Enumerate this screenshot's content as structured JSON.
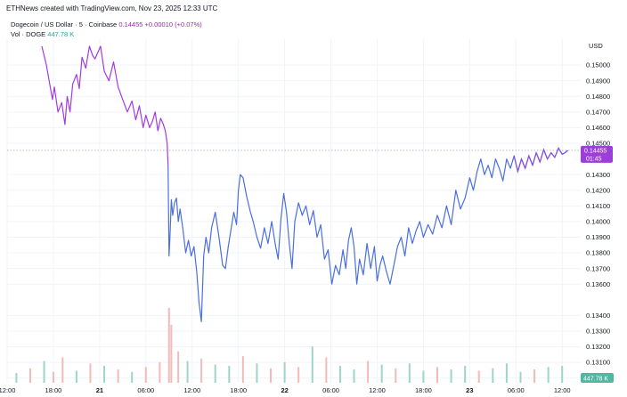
{
  "header": {
    "attribution": "ETHNews created with TradingView.com, Nov 23, 2025 12:33 UTC"
  },
  "legend": {
    "symbol": "Dogecoin / US Dollar · 5 · Coinbase",
    "last_price": "0.14455",
    "change": "+0.00010 (+0.07%)",
    "volume_label": "Vol · DOGE",
    "volume_value": "447.78 K"
  },
  "axis": {
    "currency": "USD"
  },
  "badges": {
    "price": "0.14455",
    "countdown": "01:45",
    "volume": "447.78 K"
  },
  "colors": {
    "price_line_purple": "#a33be0",
    "price_line_blue": "#4a6fe0",
    "vol_up": "#9fd5c9",
    "vol_down": "#f4b9b9"
  },
  "chart_data": {
    "type": "line",
    "symbol": "DOGEUSD",
    "exchange": "Coinbase",
    "interval": "5",
    "y_ticks": [
      "0.15000",
      "0.14900",
      "0.14800",
      "0.14700",
      "0.14600",
      "0.14500",
      "0.14300",
      "0.14200",
      "0.14100",
      "0.14000",
      "0.13900",
      "0.13800",
      "0.13700",
      "0.13600",
      "0.13400",
      "0.13300",
      "0.13200",
      "0.13100",
      "0.13000"
    ],
    "x_ticks": [
      "12:00",
      "18:00",
      "21",
      "06:00",
      "12:00",
      "18:00",
      "22",
      "06:00",
      "12:00",
      "18:00",
      "23",
      "06:00",
      "12:00"
    ],
    "ylim": [
      0.1297,
      0.1512
    ],
    "xlim": [
      0,
      12.4
    ],
    "last_price_line": 0.14455,
    "series": [
      {
        "x": [
          0.75,
          0.85,
          0.92,
          0.98,
          1.02,
          1.1,
          1.18,
          1.25,
          1.3,
          1.36,
          1.42,
          1.5,
          1.56,
          1.62,
          1.7,
          1.78,
          1.85,
          1.9,
          1.96,
          2.02,
          2.1,
          2.2,
          2.3,
          2.4,
          2.5,
          2.6,
          2.7,
          2.78,
          2.86,
          2.94,
          3.0,
          3.08,
          3.14,
          3.2,
          3.26,
          3.32,
          3.38,
          3.42,
          3.46,
          3.48
        ],
        "y": [
          0.1512,
          0.15,
          0.1488,
          0.1478,
          0.1486,
          0.147,
          0.1476,
          0.1462,
          0.148,
          0.147,
          0.1488,
          0.1494,
          0.1485,
          0.1505,
          0.1498,
          0.1512,
          0.1506,
          0.1504,
          0.1508,
          0.1512,
          0.1496,
          0.149,
          0.1502,
          0.1486,
          0.1478,
          0.147,
          0.1477,
          0.1465,
          0.1474,
          0.146,
          0.1468,
          0.146,
          0.1464,
          0.147,
          0.1458,
          0.1466,
          0.1462,
          0.1458,
          0.145,
          0.1436
        ]
      },
      {
        "x": [
          3.48,
          3.5,
          3.52,
          3.55,
          3.58,
          3.62,
          3.66,
          3.7,
          3.74,
          3.8,
          3.86,
          3.92,
          3.98,
          4.04,
          4.1,
          4.15,
          4.2,
          4.25,
          4.3,
          4.36,
          4.42,
          4.5,
          4.58,
          4.66,
          4.72,
          4.78,
          4.84,
          4.9,
          4.96,
          5.0,
          5.04,
          5.1,
          5.18,
          5.26,
          5.32,
          5.4,
          5.48,
          5.56,
          5.64,
          5.72,
          5.8,
          5.86,
          5.92,
          5.98,
          6.04,
          6.1,
          6.16,
          6.22,
          6.3,
          6.38,
          6.46,
          6.54,
          6.62,
          6.7,
          6.78,
          6.86,
          6.94,
          7.02,
          7.1,
          7.18,
          7.26,
          7.32,
          7.38,
          7.44,
          7.5,
          7.56,
          7.62,
          7.7,
          7.78,
          7.86,
          7.94,
          8.0,
          8.06,
          8.12,
          8.2,
          8.28,
          8.36,
          8.44,
          8.52,
          8.6,
          8.68,
          8.76,
          8.84,
          8.92,
          9.0,
          9.1,
          9.2,
          9.3,
          9.4,
          9.5,
          9.6,
          9.7,
          9.8,
          9.9,
          10.0,
          10.08,
          10.16,
          10.24,
          10.32,
          10.4,
          10.48,
          10.56,
          10.64,
          10.72,
          10.8,
          10.88,
          10.96,
          11.04,
          11.12,
          11.2,
          11.28,
          11.36,
          11.44,
          11.52,
          11.6,
          11.68,
          11.76,
          11.84,
          11.92,
          12.0,
          12.06,
          12.12
        ],
        "y": [
          0.1436,
          0.1378,
          0.139,
          0.1414,
          0.1404,
          0.1412,
          0.1415,
          0.14,
          0.1408,
          0.1395,
          0.138,
          0.1388,
          0.1378,
          0.1384,
          0.1368,
          0.1348,
          0.1336,
          0.1378,
          0.139,
          0.138,
          0.1396,
          0.1406,
          0.139,
          0.1372,
          0.137,
          0.1384,
          0.1395,
          0.1406,
          0.1398,
          0.142,
          0.143,
          0.1428,
          0.1416,
          0.1406,
          0.14,
          0.139,
          0.1383,
          0.1396,
          0.1386,
          0.14,
          0.1385,
          0.1376,
          0.1402,
          0.1418,
          0.1406,
          0.1386,
          0.137,
          0.14,
          0.1412,
          0.1404,
          0.141,
          0.1398,
          0.1407,
          0.139,
          0.1398,
          0.1376,
          0.1382,
          0.136,
          0.1372,
          0.1366,
          0.1382,
          0.137,
          0.1388,
          0.1396,
          0.1384,
          0.136,
          0.1376,
          0.1366,
          0.1386,
          0.137,
          0.1384,
          0.1362,
          0.1372,
          0.1378,
          0.1368,
          0.136,
          0.1372,
          0.1384,
          0.139,
          0.1378,
          0.1396,
          0.1386,
          0.1394,
          0.14,
          0.139,
          0.1398,
          0.1392,
          0.1404,
          0.1396,
          0.141,
          0.1398,
          0.142,
          0.1408,
          0.1415,
          0.1428,
          0.142,
          0.1432,
          0.144,
          0.143,
          0.1436,
          0.1428,
          0.144,
          0.1434,
          0.1426,
          0.144,
          0.1434,
          0.1442,
          0.1432,
          0.144,
          0.1434,
          0.1442,
          0.1436,
          0.1444,
          0.1438,
          0.1446,
          0.144,
          0.1444,
          0.1441,
          0.1447,
          0.1443,
          0.1444,
          0.14455
        ]
      }
    ],
    "volume": {
      "x": [
        0.2,
        0.5,
        0.8,
        1.0,
        1.2,
        1.5,
        1.8,
        2.1,
        2.4,
        2.7,
        3.0,
        3.3,
        3.5,
        3.55,
        3.7,
        3.9,
        4.2,
        4.5,
        4.8,
        5.1,
        5.4,
        5.7,
        6.0,
        6.3,
        6.6,
        6.9,
        7.2,
        7.5,
        7.8,
        8.1,
        8.4,
        8.7,
        9.0,
        9.3,
        9.6,
        9.9,
        10.2,
        10.5,
        10.8,
        11.1,
        11.4,
        11.7,
        12.0
      ],
      "v": [
        80,
        120,
        180,
        90,
        210,
        100,
        160,
        140,
        110,
        90,
        130,
        170,
        620,
        480,
        260,
        180,
        200,
        150,
        140,
        220,
        160,
        120,
        170,
        130,
        300,
        210,
        140,
        110,
        180,
        150,
        120,
        160,
        100,
        130,
        110,
        140,
        100,
        120,
        160,
        90,
        110,
        130,
        140
      ],
      "up": [
        1,
        0,
        1,
        0,
        0,
        1,
        0,
        1,
        0,
        1,
        0,
        0,
        0,
        0,
        0,
        1,
        0,
        1,
        1,
        0,
        1,
        0,
        1,
        0,
        1,
        0,
        1,
        1,
        0,
        1,
        0,
        1,
        1,
        0,
        1,
        1,
        0,
        1,
        1,
        1,
        0,
        1,
        1
      ]
    }
  }
}
